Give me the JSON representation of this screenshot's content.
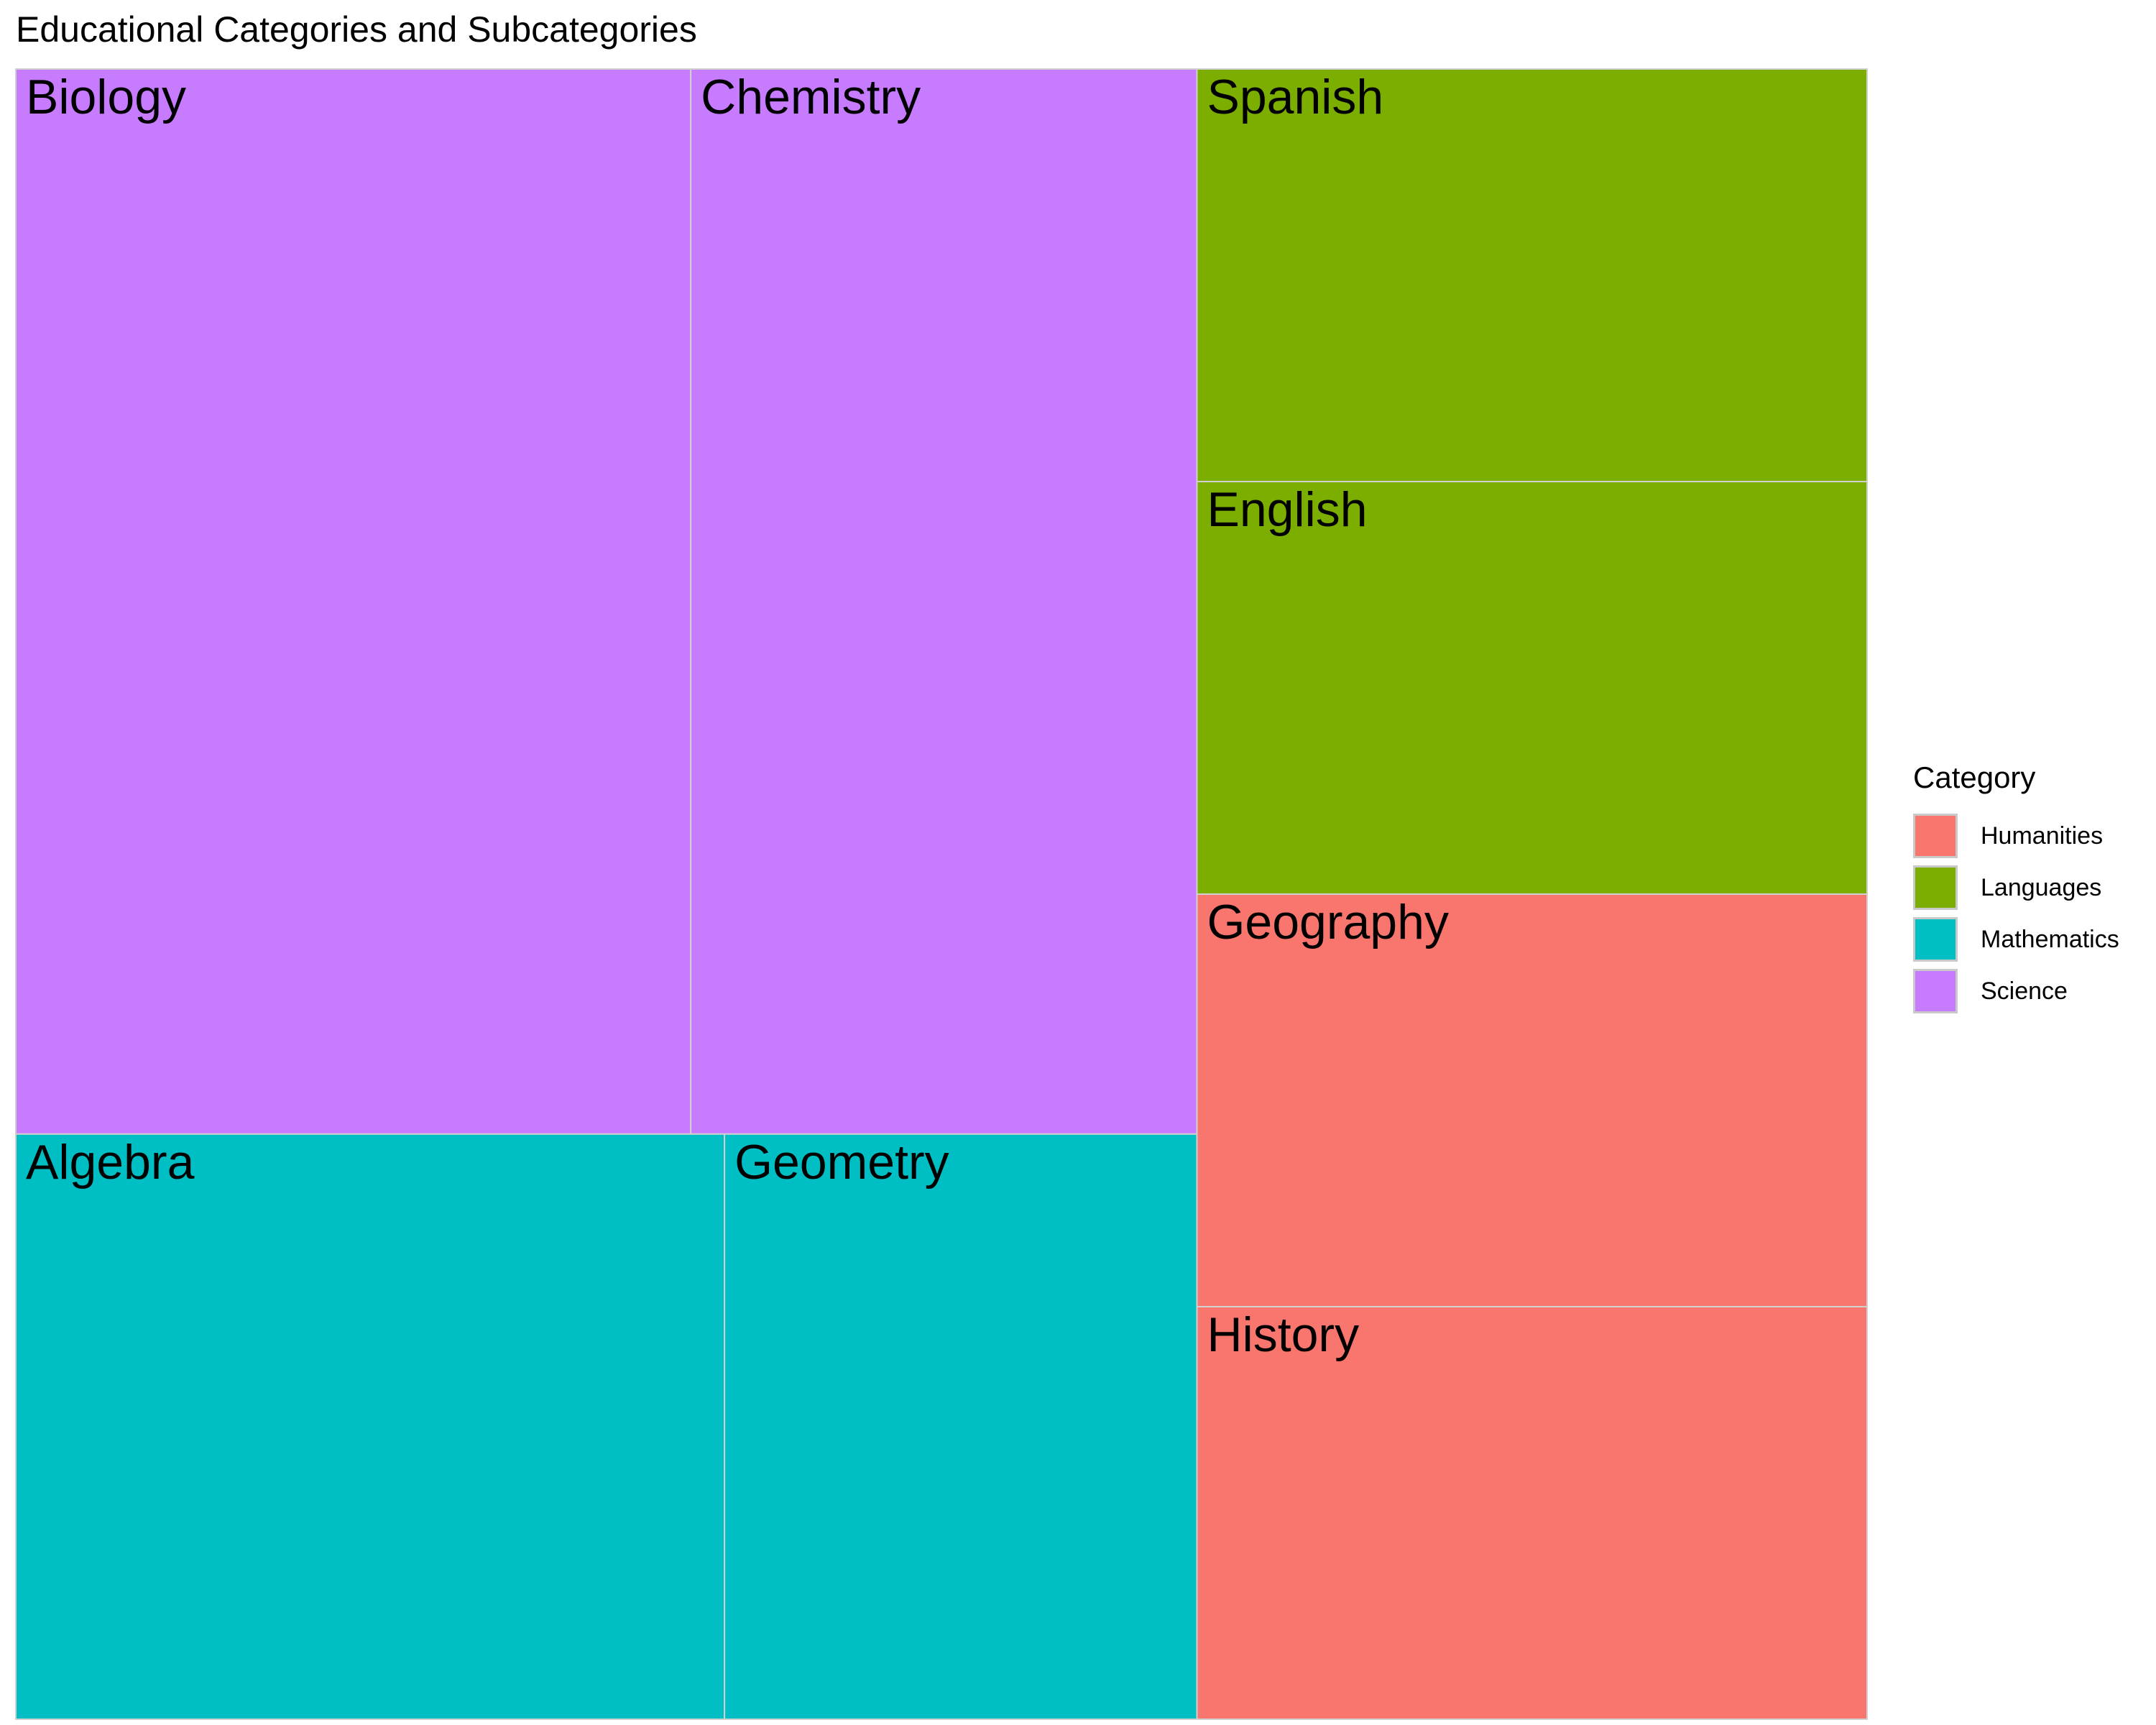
{
  "chart_data": {
    "type": "treemap",
    "title": "Educational Categories and Subcategories",
    "legend": {
      "title": "Category",
      "placement": "right",
      "entries": [
        "Humanities",
        "Languages",
        "Mathematics",
        "Science"
      ]
    },
    "colors": {
      "Humanities": "#F8766D",
      "Languages": "#7CAE00",
      "Mathematics": "#00BFC4",
      "Science": "#C77CFF"
    },
    "categories": [
      {
        "name": "Science",
        "children": [
          {
            "name": "Biology",
            "value": 26
          },
          {
            "name": "Chemistry",
            "value": 19.5
          }
        ]
      },
      {
        "name": "Mathematics",
        "children": [
          {
            "name": "Algebra",
            "value": 15
          },
          {
            "name": "Geometry",
            "value": 10
          }
        ]
      },
      {
        "name": "Languages",
        "children": [
          {
            "name": "Spanish",
            "value": 10
          },
          {
            "name": "English",
            "value": 10
          }
        ]
      },
      {
        "name": "Humanities",
        "children": [
          {
            "name": "Geography",
            "value": 10
          },
          {
            "name": "History",
            "value": 10
          }
        ]
      }
    ]
  }
}
